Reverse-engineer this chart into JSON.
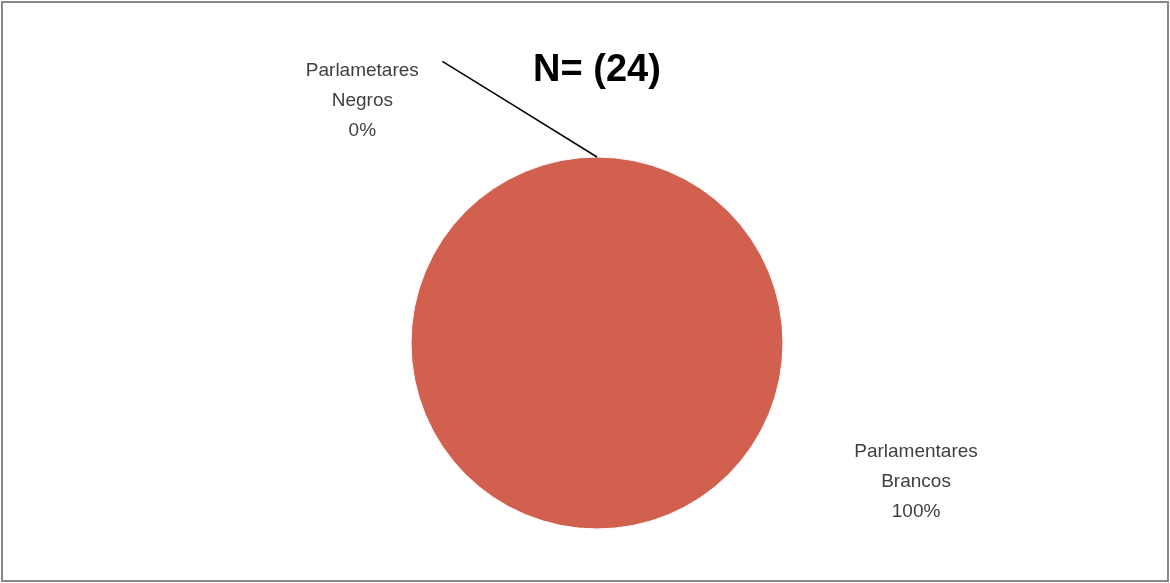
{
  "chart_data": {
    "type": "pie",
    "title": "N= (24)",
    "categories": [
      "Parlametares Negros",
      "Parlamentares Brancos"
    ],
    "values": [
      0,
      100
    ],
    "colors": [
      "#4f81bd",
      "#d2604f"
    ],
    "value_labels": [
      "0%",
      "100%"
    ]
  }
}
